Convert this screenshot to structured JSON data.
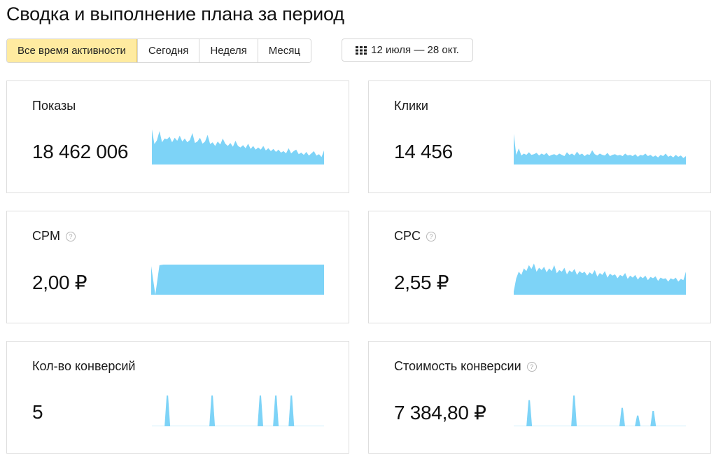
{
  "page": {
    "title": "Сводка и выполнение плана за период"
  },
  "periods": {
    "items": [
      "Все время активности",
      "Сегодня",
      "Неделя",
      "Месяц"
    ],
    "active_index": 0
  },
  "date_range": {
    "label": "12 июля — 28 окт.",
    "icon": "calendar-icon"
  },
  "colors": {
    "sparkline": "#7dd3f7",
    "active_period": "#ffeba0"
  },
  "cards": [
    {
      "id": "shows",
      "label": "Показы",
      "value": "18 462 006",
      "help": false,
      "spark": [
        0.95,
        0.55,
        0.65,
        0.9,
        0.6,
        0.7,
        0.68,
        0.75,
        0.6,
        0.72,
        0.64,
        0.78,
        0.62,
        0.7,
        0.6,
        0.66,
        0.85,
        0.58,
        0.62,
        0.72,
        0.56,
        0.62,
        0.8,
        0.55,
        0.6,
        0.5,
        0.62,
        0.54,
        0.7,
        0.56,
        0.5,
        0.58,
        0.48,
        0.64,
        0.5,
        0.46,
        0.52,
        0.44,
        0.56,
        0.42,
        0.5,
        0.4,
        0.46,
        0.4,
        0.5,
        0.38,
        0.44,
        0.36,
        0.42,
        0.34,
        0.4,
        0.32,
        0.36,
        0.3,
        0.44,
        0.3,
        0.36,
        0.4,
        0.28,
        0.32,
        0.26,
        0.34,
        0.24,
        0.3,
        0.36,
        0.24,
        0.28,
        0.2,
        0.38
      ]
    },
    {
      "id": "clicks",
      "label": "Клики",
      "value": "14 456",
      "help": false,
      "spark": [
        0.95,
        0.3,
        0.5,
        0.28,
        0.34,
        0.3,
        0.38,
        0.3,
        0.32,
        0.36,
        0.28,
        0.34,
        0.3,
        0.36,
        0.26,
        0.3,
        0.32,
        0.28,
        0.34,
        0.3,
        0.26,
        0.38,
        0.3,
        0.34,
        0.28,
        0.4,
        0.3,
        0.34,
        0.26,
        0.32,
        0.3,
        0.44,
        0.32,
        0.28,
        0.34,
        0.3,
        0.28,
        0.36,
        0.26,
        0.3,
        0.32,
        0.28,
        0.3,
        0.26,
        0.34,
        0.28,
        0.3,
        0.26,
        0.32,
        0.24,
        0.3,
        0.28,
        0.34,
        0.26,
        0.3,
        0.24,
        0.28,
        0.22,
        0.3,
        0.26,
        0.34,
        0.24,
        0.28,
        0.22,
        0.3,
        0.24,
        0.28,
        0.2,
        0.26
      ]
    },
    {
      "id": "cpm",
      "label": "CPM",
      "value": "2,00 ₽",
      "help": true,
      "spark": [
        0.95,
        0.0,
        0.98,
        1,
        1,
        1,
        1,
        1,
        1,
        1,
        1,
        1,
        1,
        1,
        1,
        1,
        1,
        1,
        1,
        1,
        1,
        1,
        1,
        1,
        1,
        1,
        1,
        1,
        1,
        1,
        1,
        1,
        1,
        1,
        1,
        1,
        1,
        1,
        1,
        1,
        1,
        1,
        1
      ]
    },
    {
      "id": "cpc",
      "label": "CPC",
      "value": "2,55 ₽",
      "help": true,
      "spark": [
        0.1,
        0.5,
        0.7,
        0.6,
        0.8,
        0.72,
        0.9,
        0.78,
        0.95,
        0.7,
        0.82,
        0.75,
        0.85,
        0.68,
        0.8,
        0.72,
        0.9,
        0.65,
        0.75,
        0.7,
        0.82,
        0.62,
        0.74,
        0.68,
        0.78,
        0.6,
        0.72,
        0.65,
        0.7,
        0.58,
        0.68,
        0.62,
        0.75,
        0.55,
        0.66,
        0.6,
        0.72,
        0.52,
        0.64,
        0.58,
        0.62,
        0.5,
        0.6,
        0.56,
        0.66,
        0.48,
        0.58,
        0.52,
        0.6,
        0.46,
        0.56,
        0.5,
        0.58,
        0.44,
        0.54,
        0.5,
        0.56,
        0.42,
        0.52,
        0.48,
        0.5,
        0.4,
        0.5,
        0.46,
        0.52,
        0.4,
        0.48,
        0.44,
        0.7
      ]
    },
    {
      "id": "conversions",
      "label": "Кол-во конверсий",
      "value": "5",
      "help": false,
      "spikes": [
        0.09,
        0.35,
        0.63,
        0.72,
        0.81
      ],
      "spike_heights": [
        1,
        1,
        1,
        1,
        1
      ]
    },
    {
      "id": "conv_cost",
      "label": "Стоимость конверсии",
      "value": "7 384,80 ₽",
      "help": true,
      "spikes": [
        0.09,
        0.35,
        0.63,
        0.72,
        0.81
      ],
      "spike_heights": [
        0.85,
        1,
        0.6,
        0.35,
        0.5
      ]
    }
  ]
}
